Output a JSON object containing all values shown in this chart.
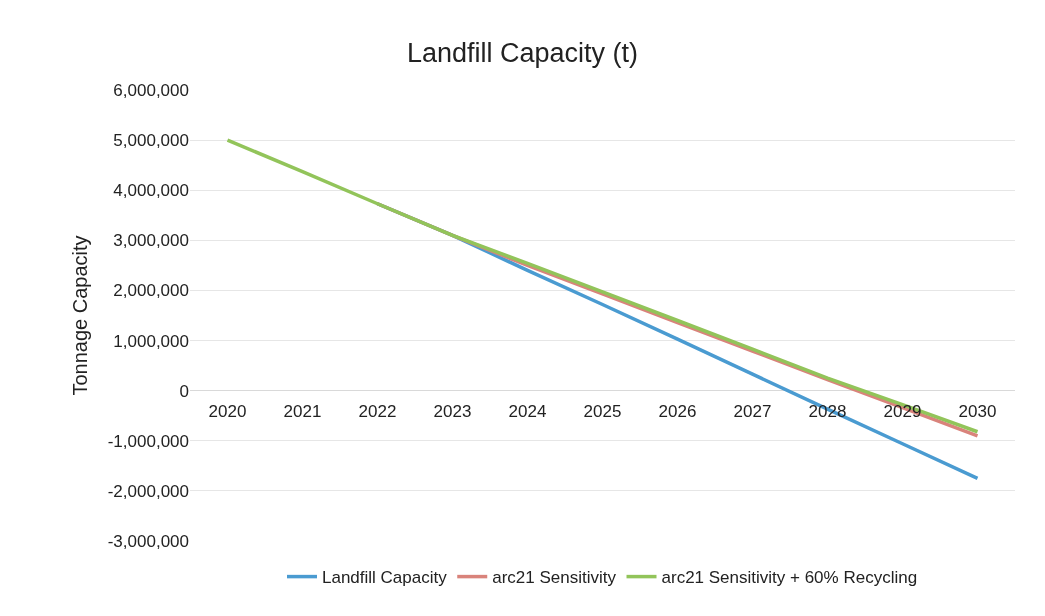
{
  "chart_data": {
    "type": "line",
    "title": "Landfill Capacity (t)",
    "ylabel": "Tonnage Capacity",
    "categories": [
      "2020",
      "2021",
      "2022",
      "2023",
      "2024",
      "2025",
      "2026",
      "2027",
      "2028",
      "2029",
      "2030"
    ],
    "series": [
      {
        "name": "Landfill Capacity",
        "color": "#4a9bd1",
        "values": [
          null,
          null,
          3730000,
          3100000,
          2400000,
          1720000,
          1030000,
          330000,
          -370000,
          -1060000,
          -1750000
        ]
      },
      {
        "name": "arc21 Sensitivity",
        "color": "#d9837b",
        "values": [
          null,
          null,
          3730000,
          3100000,
          2500000,
          1930000,
          1360000,
          790000,
          220000,
          -340000,
          -900000
        ]
      },
      {
        "name": "arc21 Sensitivity + 60% Recycling",
        "color": "#92c45a",
        "values": [
          5000000,
          4370000,
          3730000,
          3100000,
          2540000,
          1970000,
          1400000,
          830000,
          250000,
          -280000,
          -820000
        ]
      }
    ],
    "ylim": [
      -3000000,
      6000000
    ],
    "yticks": [
      {
        "value": -3000000,
        "label": "-3,000,000"
      },
      {
        "value": -2000000,
        "label": "-2,000,000"
      },
      {
        "value": -1000000,
        "label": "-1,000,000"
      },
      0,
      {
        "value": 1000000,
        "label": "1,000,000"
      },
      {
        "value": 2000000,
        "label": "2,000,000"
      },
      {
        "value": 3000000,
        "label": "3,000,000"
      },
      {
        "value": 4000000,
        "label": "4,000,000"
      },
      {
        "value": 5000000,
        "label": "5,000,000"
      },
      {
        "value": 6000000,
        "label": "6,000,000"
      }
    ],
    "grid": "y",
    "legend": "bottom",
    "marker": "none",
    "line_style": "solid"
  }
}
